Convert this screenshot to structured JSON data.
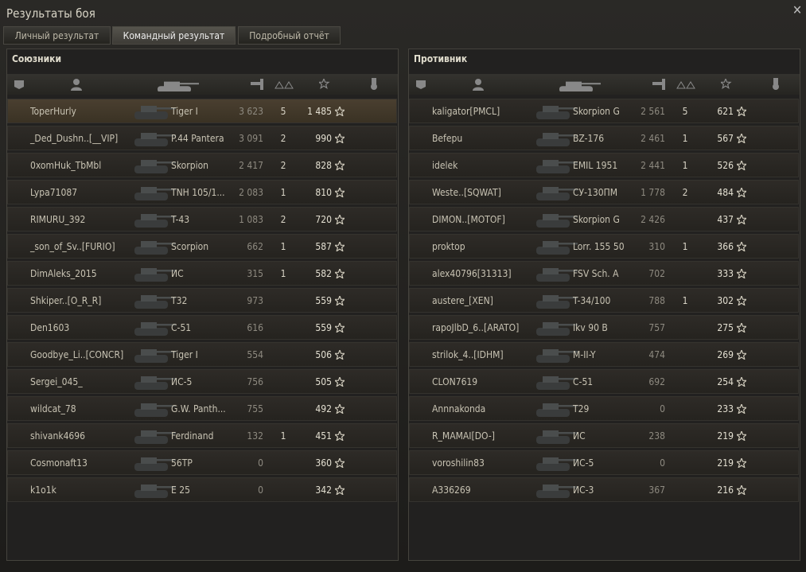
{
  "window": {
    "title": "Результаты боя"
  },
  "tabs": [
    "Личный результат",
    "Командный результат",
    "Подробный отчёт"
  ],
  "active_tab": 1,
  "panels": [
    {
      "title": "Союзники",
      "rows": [
        {
          "player": "ToperHurly",
          "tank": "Tiger I",
          "damage": "3 623",
          "frags": 5,
          "xp": "1 485"
        },
        {
          "player": "_Ded_Dushn..[__VIP]",
          "tank": "P.44 Pantera",
          "damage": "3 091",
          "frags": 2,
          "xp": "990"
        },
        {
          "player": "0xomHuk_TbMbl",
          "tank": "Skorpion",
          "damage": "2 417",
          "frags": 2,
          "xp": "828"
        },
        {
          "player": "Lypa71087",
          "tank": "TNH 105/1...",
          "damage": "2 083",
          "frags": 1,
          "xp": "810"
        },
        {
          "player": "RIMURU_392",
          "tank": "T-43",
          "damage": "1 083",
          "frags": 2,
          "xp": "720"
        },
        {
          "player": "_son_of_Sv..[FURIO]",
          "tank": "Scorpion",
          "damage": "662",
          "frags": 1,
          "xp": "587"
        },
        {
          "player": "DimAleks_2015",
          "tank": "ИС",
          "damage": "315",
          "frags": 1,
          "xp": "582"
        },
        {
          "player": "Shkiper..[O_R_R]",
          "tank": "T32",
          "damage": "973",
          "frags": null,
          "xp": "559"
        },
        {
          "player": "Den1603",
          "tank": "С-51",
          "damage": "616",
          "frags": null,
          "xp": "559"
        },
        {
          "player": "Goodbye_Li..[CONCR]",
          "tank": "Tiger I",
          "damage": "554",
          "frags": null,
          "xp": "506"
        },
        {
          "player": "Sergei_045_",
          "tank": "ИС-5",
          "damage": "756",
          "frags": null,
          "xp": "505"
        },
        {
          "player": "wildcat_78",
          "tank": "G.W. Panth...",
          "damage": "755",
          "frags": null,
          "xp": "492"
        },
        {
          "player": "shivank4696",
          "tank": "Ferdinand",
          "damage": "132",
          "frags": 1,
          "xp": "451"
        },
        {
          "player": "Cosmonaft13",
          "tank": "56TP",
          "damage": "0",
          "frags": null,
          "xp": "360"
        },
        {
          "player": "k1o1k",
          "tank": "E 25",
          "damage": "0",
          "frags": null,
          "xp": "342"
        }
      ]
    },
    {
      "title": "Противник",
      "rows": [
        {
          "player": "kaligator[PMCL]",
          "tank": "Skorpion G",
          "damage": "2 561",
          "frags": 5,
          "xp": "621"
        },
        {
          "player": "Befepu",
          "tank": "BZ-176",
          "damage": "2 461",
          "frags": 1,
          "xp": "567"
        },
        {
          "player": "idelek",
          "tank": "EMIL 1951",
          "damage": "2 441",
          "frags": 1,
          "xp": "526"
        },
        {
          "player": "Weste..[SQWAT]",
          "tank": "СУ-130ПМ",
          "damage": "1 778",
          "frags": 2,
          "xp": "484"
        },
        {
          "player": "DIMON..[MOTOF]",
          "tank": "Skorpion G",
          "damage": "2 426",
          "frags": null,
          "xp": "437"
        },
        {
          "player": "proktop",
          "tank": "Lorr. 155 50",
          "damage": "310",
          "frags": 1,
          "xp": "366"
        },
        {
          "player": "alex40796[31313]",
          "tank": "FSV Sch. A",
          "damage": "702",
          "frags": null,
          "xp": "333"
        },
        {
          "player": "austere_[XEN]",
          "tank": "T-34/100",
          "damage": "788",
          "frags": 1,
          "xp": "302"
        },
        {
          "player": "rapoJlbD_6..[ARATO]",
          "tank": "Ikv 90 B",
          "damage": "757",
          "frags": null,
          "xp": "275"
        },
        {
          "player": "strilok_4..[IDHM]",
          "tank": "M-II-Y",
          "damage": "474",
          "frags": null,
          "xp": "269"
        },
        {
          "player": "CLON7619",
          "tank": "C-51",
          "damage": "692",
          "frags": null,
          "xp": "254"
        },
        {
          "player": "Annnakonda",
          "tank": "T29",
          "damage": "0",
          "frags": null,
          "xp": "233"
        },
        {
          "player": "R_MAMAI[DO-]",
          "tank": "ИС",
          "damage": "238",
          "frags": null,
          "xp": "219"
        },
        {
          "player": "voroshilin83",
          "tank": "ИС-5",
          "damage": "0",
          "frags": null,
          "xp": "219"
        },
        {
          "player": "A336269",
          "tank": "ИС-3",
          "damage": "367",
          "frags": null,
          "xp": "216"
        }
      ]
    }
  ]
}
